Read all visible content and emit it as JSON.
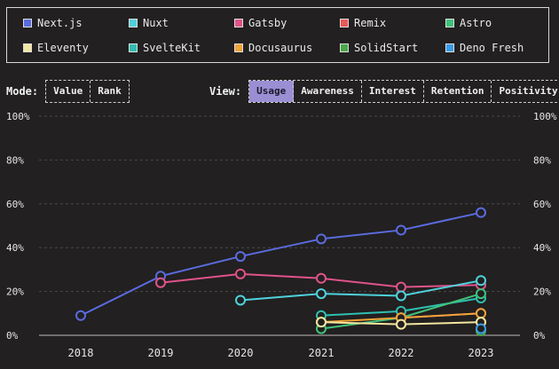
{
  "legend": [
    {
      "name": "Next.js",
      "color": "#5a6be0"
    },
    {
      "name": "Nuxt",
      "color": "#4fd1dc"
    },
    {
      "name": "Gatsby",
      "color": "#e0538a"
    },
    {
      "name": "Remix",
      "color": "#e85a5a"
    },
    {
      "name": "Astro",
      "color": "#3fc27a"
    },
    {
      "name": "Eleventy",
      "color": "#f3e7a0"
    },
    {
      "name": "SvelteKit",
      "color": "#2fbfb0"
    },
    {
      "name": "Docusaurus",
      "color": "#f0a33a"
    },
    {
      "name": "SolidStart",
      "color": "#4aa84a"
    },
    {
      "name": "Deno Fresh",
      "color": "#3a9be8"
    }
  ],
  "mode": {
    "label": "Mode:",
    "options": [
      "Value",
      "Rank"
    ]
  },
  "view": {
    "label": "View:",
    "options": [
      "Usage",
      "Awareness",
      "Interest",
      "Retention",
      "Positivity"
    ],
    "active": "Usage"
  },
  "chart_data": {
    "type": "line",
    "x": [
      2018,
      2019,
      2020,
      2021,
      2022,
      2023
    ],
    "ylim": [
      0,
      100
    ],
    "yticks": [
      "0%",
      "20%",
      "40%",
      "60%",
      "80%",
      "100%"
    ],
    "grid": true,
    "series": [
      {
        "name": "Next.js",
        "color": "#5a6be0",
        "values": [
          9,
          27,
          36,
          44,
          48,
          56
        ]
      },
      {
        "name": "Gatsby",
        "color": "#e0538a",
        "values": [
          null,
          24,
          28,
          26,
          22,
          23
        ]
      },
      {
        "name": "Nuxt",
        "color": "#4fd1dc",
        "values": [
          null,
          null,
          16,
          19,
          18,
          25
        ]
      },
      {
        "name": "SvelteKit",
        "color": "#2fbfb0",
        "values": [
          null,
          null,
          null,
          9,
          11,
          17
        ]
      },
      {
        "name": "Astro",
        "color": "#3fc27a",
        "values": [
          null,
          null,
          null,
          3,
          8,
          19
        ]
      },
      {
        "name": "Remix",
        "color": "#e85a5a",
        "values": [
          null,
          null,
          null,
          null,
          8,
          10
        ]
      },
      {
        "name": "Docusaurus",
        "color": "#f0a33a",
        "values": [
          null,
          null,
          null,
          6,
          8,
          10
        ]
      },
      {
        "name": "Eleventy",
        "color": "#f3e7a0",
        "values": [
          null,
          null,
          null,
          6,
          5,
          6
        ]
      },
      {
        "name": "SolidStart",
        "color": "#4aa84a",
        "values": [
          null,
          null,
          null,
          null,
          null,
          2
        ]
      },
      {
        "name": "Deno Fresh",
        "color": "#3a9be8",
        "values": [
          null,
          null,
          null,
          null,
          null,
          3
        ]
      }
    ]
  }
}
